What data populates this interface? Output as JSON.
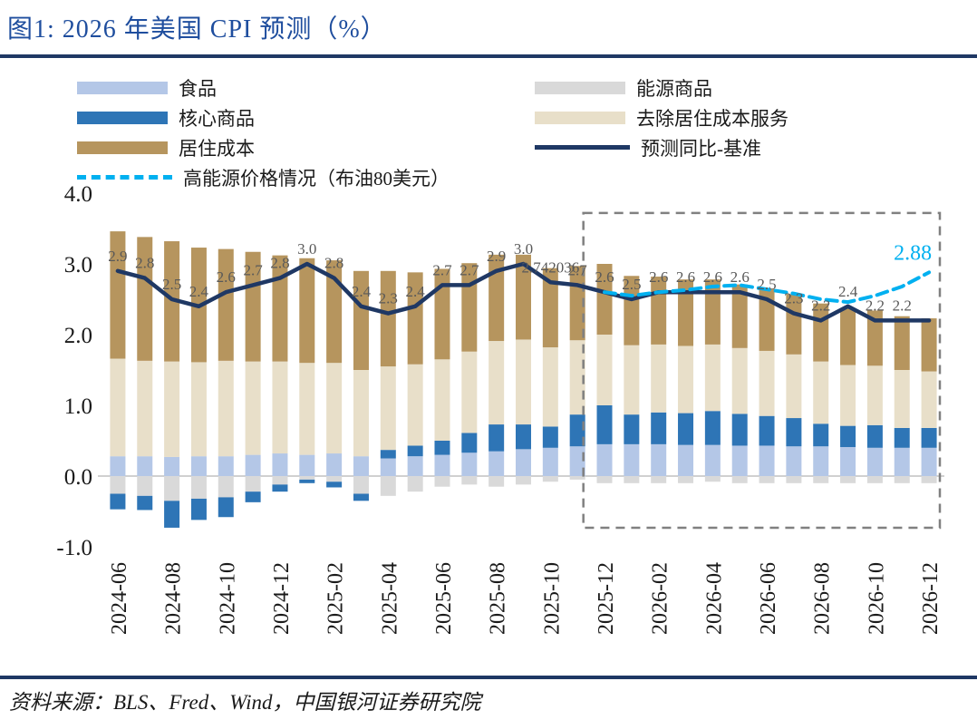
{
  "title": "图1: 2026 年美国 CPI 预测（%）",
  "source": "资料来源：BLS、Fred、Wind，中国银河证券研究院",
  "colors": {
    "accent_title": "#1f4e9e",
    "rule": "#1f3864",
    "food": "#b4c7e7",
    "energy": "#d9d9d9",
    "core_goods": "#2e75b6",
    "services_ex_housing": "#e8dfc9",
    "housing": "#b6955e",
    "baseline_line": "#1f3864",
    "scenario_line": "#00b0f0",
    "label_gray": "#595959",
    "axis_text": "#1a1a1a",
    "zero_line": "#c0c0c0",
    "highlight_box": "#808080"
  },
  "legend": {
    "items": [
      {
        "label": "食品",
        "swatch": "bar",
        "colorKey": "food"
      },
      {
        "label": "能源商品",
        "swatch": "bar",
        "colorKey": "energy"
      },
      {
        "label": "核心商品",
        "swatch": "bar",
        "colorKey": "core_goods"
      },
      {
        "label": "去除居住成本服务",
        "swatch": "bar",
        "colorKey": "services_ex_housing"
      },
      {
        "label": "居住成本",
        "swatch": "bar",
        "colorKey": "housing"
      },
      {
        "label": "预测同比-基准",
        "swatch": "line",
        "colorKey": "baseline_line"
      },
      {
        "label": "高能源价格情况（布油80美元）",
        "swatch": "dash",
        "colorKey": "scenario_line"
      }
    ]
  },
  "chart_data": {
    "type": "bar",
    "subtype": "stacked-bars-with-lines",
    "title": "2026 年美国 CPI 预测（%）",
    "ylim": [
      -1.0,
      4.0
    ],
    "y_ticks": [
      4.0,
      3.0,
      2.0,
      1.0,
      0.0,
      -1.0
    ],
    "x_tick_every": 2,
    "grid": false,
    "x": [
      "2024-06",
      "2024-07",
      "2024-08",
      "2024-09",
      "2024-10",
      "2024-11",
      "2024-12",
      "2025-01",
      "2025-02",
      "2025-03",
      "2025-04",
      "2025-05",
      "2025-06",
      "2025-07",
      "2025-08",
      "2025-09",
      "2025-10",
      "2025-11",
      "2025-12",
      "2026-01",
      "2026-02",
      "2026-03",
      "2026-04",
      "2026-05",
      "2026-06",
      "2026-07",
      "2026-08",
      "2026-09",
      "2026-10",
      "2026-11",
      "2026-12"
    ],
    "bar_series": [
      {
        "key": "food",
        "name": "食品",
        "colorKey": "food",
        "values": [
          0.28,
          0.28,
          0.27,
          0.28,
          0.28,
          0.3,
          0.32,
          0.3,
          0.32,
          0.28,
          0.25,
          0.28,
          0.3,
          0.33,
          0.35,
          0.38,
          0.4,
          0.42,
          0.45,
          0.45,
          0.45,
          0.44,
          0.44,
          0.43,
          0.43,
          0.42,
          0.42,
          0.41,
          0.4,
          0.4,
          0.4
        ]
      },
      {
        "key": "energy",
        "name": "能源商品",
        "colorKey": "energy",
        "values": [
          -0.25,
          -0.28,
          -0.35,
          -0.32,
          -0.3,
          -0.22,
          -0.12,
          -0.05,
          -0.08,
          -0.25,
          -0.28,
          -0.22,
          -0.15,
          -0.12,
          -0.15,
          -0.12,
          -0.08,
          -0.05,
          -0.1,
          -0.1,
          -0.1,
          -0.1,
          -0.08,
          -0.1,
          -0.1,
          -0.1,
          -0.1,
          -0.1,
          -0.1,
          -0.1,
          -0.1
        ]
      },
      {
        "key": "core_goods",
        "name": "核心商品",
        "colorKey": "core_goods",
        "values": [
          -0.22,
          -0.2,
          -0.38,
          -0.3,
          -0.28,
          -0.15,
          -0.1,
          -0.05,
          -0.08,
          -0.1,
          0.12,
          0.15,
          0.2,
          0.28,
          0.38,
          0.35,
          0.3,
          0.45,
          0.55,
          0.42,
          0.45,
          0.45,
          0.48,
          0.45,
          0.42,
          0.4,
          0.32,
          0.3,
          0.32,
          0.28,
          0.28
        ]
      },
      {
        "key": "services_ex_housing",
        "name": "去除居住成本服务",
        "colorKey": "services_ex_housing",
        "values": [
          1.38,
          1.35,
          1.35,
          1.33,
          1.35,
          1.32,
          1.3,
          1.3,
          1.28,
          1.22,
          1.18,
          1.15,
          1.15,
          1.15,
          1.18,
          1.2,
          1.12,
          1.05,
          1.0,
          0.98,
          0.96,
          0.95,
          0.94,
          0.93,
          0.92,
          0.9,
          0.88,
          0.86,
          0.84,
          0.82,
          0.8
        ]
      },
      {
        "key": "housing",
        "name": "居住成本",
        "colorKey": "housing",
        "values": [
          1.8,
          1.75,
          1.7,
          1.62,
          1.58,
          1.55,
          1.5,
          1.48,
          1.45,
          1.4,
          1.35,
          1.3,
          1.28,
          1.25,
          1.22,
          1.2,
          1.12,
          1.05,
          1.0,
          0.98,
          0.96,
          0.94,
          0.92,
          0.9,
          0.88,
          0.85,
          0.82,
          0.8,
          0.78,
          0.76,
          0.75
        ]
      }
    ],
    "line_series": [
      {
        "key": "baseline",
        "name": "预测同比-基准",
        "colorKey": "baseline_line",
        "style": "solid",
        "values": [
          2.9,
          2.8,
          2.5,
          2.4,
          2.6,
          2.7,
          2.8,
          3.0,
          2.8,
          2.4,
          2.3,
          2.4,
          2.7,
          2.7,
          2.9,
          3.0,
          2.74,
          2.7,
          2.6,
          2.5,
          2.6,
          2.6,
          2.6,
          2.6,
          2.5,
          2.3,
          2.2,
          2.4,
          2.2,
          2.2,
          2.2
        ],
        "labels": [
          "2.9",
          "2.8",
          "2.5",
          "2.4",
          "2.6",
          "2.7",
          "2.8",
          "3.0",
          "2.8",
          "2.4",
          "2.3",
          "2.4",
          "2.7",
          "2.7",
          "2.9",
          "3.0",
          "2.742036",
          "2.7",
          "2.6",
          "2.5",
          "2.6",
          "2.6",
          "2.6",
          "2.6",
          "2.5",
          "2.3",
          "2.2",
          "2.4",
          "2.2",
          "2.2",
          ""
        ]
      },
      {
        "key": "scenario",
        "name": "高能源价格情况（布油80美元）",
        "colorKey": "scenario_line",
        "style": "dashed",
        "values": [
          null,
          null,
          null,
          null,
          null,
          null,
          null,
          null,
          null,
          null,
          null,
          null,
          null,
          null,
          null,
          null,
          null,
          null,
          2.6,
          2.55,
          2.6,
          2.63,
          2.68,
          2.7,
          2.64,
          2.58,
          2.5,
          2.46,
          2.55,
          2.68,
          2.88
        ],
        "end_label": "2.88"
      }
    ],
    "highlight_region": {
      "from": "2025-12",
      "to": "2026-12",
      "from_index": 18,
      "to_index": 30
    }
  }
}
